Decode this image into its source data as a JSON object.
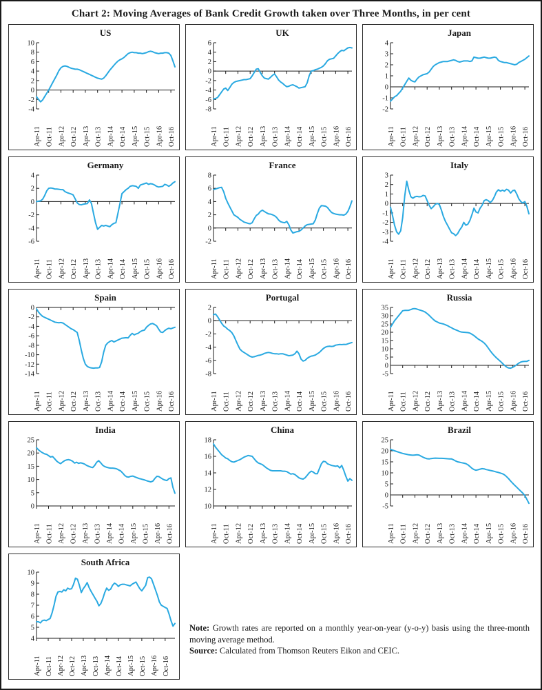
{
  "page": {
    "title": "Chart 2: Moving Averages of Bank Credit Growth taken over Three Months, in per cent"
  },
  "note": {
    "label": "Note:",
    "text": " Growth rates are reported on a monthly year-on-year (y-o-y) basis using the three-month moving average method."
  },
  "source": {
    "label": "Source:",
    "text": " Calculated from Thomson Reuters Eikon and CEIC."
  },
  "colors": {
    "line": "#29A9E1",
    "axis": "#1a1a1a"
  },
  "x_tick_labels": [
    "Apr-11",
    "Oct-11",
    "Apr-12",
    "Oct-12",
    "Apr-13",
    "Oct-13",
    "Apr-14",
    "Oct-14",
    "Apr-15",
    "Oct-15",
    "Apr-16",
    "Oct-16"
  ],
  "chart_data": [
    {
      "type": "line",
      "title": "US",
      "ylim": [
        -4,
        10
      ],
      "ystep": 2,
      "values": [
        -1.4,
        -2.0,
        -2.5,
        -2.1,
        -1.4,
        -0.7,
        0.0,
        0.8,
        1.6,
        2.4,
        3.2,
        4.1,
        4.7,
        5.0,
        5.1,
        5.0,
        4.8,
        4.6,
        4.5,
        4.4,
        4.4,
        4.3,
        4.1,
        3.9,
        3.7,
        3.5,
        3.3,
        3.1,
        2.9,
        2.7,
        2.5,
        2.4,
        2.3,
        2.5,
        3.0,
        3.6,
        4.2,
        4.7,
        5.2,
        5.7,
        6.1,
        6.4,
        6.6,
        6.9,
        7.3,
        7.7,
        7.9,
        8.0,
        7.9,
        7.9,
        7.8,
        7.8,
        7.7,
        7.8,
        7.9,
        8.1,
        8.2,
        8.1,
        7.9,
        7.8,
        7.7,
        7.8,
        7.8,
        7.9,
        7.9,
        7.8,
        7.3,
        6.2,
        4.9
      ]
    },
    {
      "type": "line",
      "title": "UK",
      "ylim": [
        -8,
        6
      ],
      "ystep": 2,
      "values": [
        -5.9,
        -5.8,
        -5.6,
        -5.0,
        -4.4,
        -3.8,
        -3.6,
        -4.1,
        -3.5,
        -2.8,
        -2.4,
        -2.2,
        -2.1,
        -2.0,
        -1.9,
        -1.8,
        -1.8,
        -1.7,
        -1.6,
        -1.0,
        -0.3,
        0.4,
        0.5,
        -0.3,
        -1.0,
        -1.5,
        -1.6,
        -1.7,
        -1.3,
        -0.9,
        -0.6,
        -1.2,
        -1.9,
        -2.3,
        -2.6,
        -3.0,
        -3.3,
        -3.2,
        -3.0,
        -2.9,
        -3.1,
        -3.3,
        -3.6,
        -3.5,
        -3.4,
        -3.3,
        -2.5,
        -1.0,
        0.0,
        0.1,
        0.3,
        0.4,
        0.6,
        0.8,
        1.1,
        1.6,
        2.2,
        2.5,
        2.6,
        2.7,
        3.2,
        3.7,
        4.1,
        4.4,
        4.3,
        4.6,
        4.9,
        5.0,
        4.9
      ]
    },
    {
      "type": "line",
      "title": "Japan",
      "ylim": [
        -2,
        4
      ],
      "ystep": 1,
      "values": [
        -1.3,
        -1.1,
        -0.9,
        -0.8,
        -0.6,
        -0.4,
        -0.1,
        0.2,
        0.5,
        0.8,
        0.6,
        0.5,
        0.45,
        0.7,
        0.9,
        1.0,
        1.1,
        1.15,
        1.2,
        1.35,
        1.6,
        1.85,
        2.0,
        2.1,
        2.2,
        2.25,
        2.3,
        2.3,
        2.3,
        2.35,
        2.4,
        2.45,
        2.4,
        2.3,
        2.25,
        2.3,
        2.35,
        2.35,
        2.35,
        2.3,
        2.35,
        2.7,
        2.65,
        2.6,
        2.6,
        2.65,
        2.7,
        2.65,
        2.6,
        2.6,
        2.65,
        2.7,
        2.65,
        2.4,
        2.3,
        2.25,
        2.2,
        2.2,
        2.15,
        2.1,
        2.05,
        2.0,
        2.05,
        2.2,
        2.3,
        2.4,
        2.5,
        2.65,
        2.8
      ]
    },
    {
      "type": "line",
      "title": "Germany",
      "ylim": [
        -6,
        4
      ],
      "ystep": 2,
      "values": [
        0.0,
        0.05,
        0.1,
        0.35,
        0.9,
        1.6,
        2.0,
        2.05,
        2.0,
        1.9,
        1.9,
        1.85,
        1.8,
        1.8,
        1.5,
        1.35,
        1.25,
        1.15,
        1.0,
        0.4,
        -0.2,
        -0.45,
        -0.5,
        -0.4,
        -0.35,
        -0.3,
        0.25,
        -0.3,
        -1.8,
        -3.2,
        -4.2,
        -3.9,
        -3.6,
        -3.7,
        -3.6,
        -3.7,
        -3.8,
        -3.5,
        -3.3,
        -3.2,
        -1.8,
        -0.3,
        1.2,
        1.5,
        1.8,
        2.0,
        2.3,
        2.4,
        2.35,
        2.3,
        2.0,
        2.5,
        2.6,
        2.7,
        2.8,
        2.6,
        2.7,
        2.65,
        2.5,
        2.3,
        2.2,
        2.25,
        2.3,
        2.6,
        2.5,
        2.3,
        2.5,
        2.8,
        3.0
      ]
    },
    {
      "type": "line",
      "title": "France",
      "ylim": [
        -2,
        8
      ],
      "ystep": 2,
      "values": [
        5.8,
        5.9,
        6.0,
        6.1,
        6.15,
        5.5,
        4.5,
        3.8,
        3.2,
        2.6,
        2.0,
        1.8,
        1.6,
        1.3,
        1.1,
        0.9,
        0.8,
        0.7,
        0.65,
        0.8,
        1.4,
        1.9,
        2.1,
        2.5,
        2.7,
        2.5,
        2.3,
        2.15,
        2.1,
        2.0,
        1.85,
        1.6,
        1.2,
        0.95,
        0.85,
        0.8,
        1.0,
        0.5,
        -0.3,
        -0.75,
        -0.65,
        -0.55,
        -0.5,
        -0.3,
        0.0,
        0.3,
        0.5,
        0.55,
        0.6,
        0.65,
        1.2,
        2.2,
        3.0,
        3.4,
        3.35,
        3.3,
        3.1,
        2.7,
        2.35,
        2.2,
        2.1,
        2.05,
        2.0,
        2.0,
        1.95,
        2.1,
        2.5,
        3.2,
        4.1
      ]
    },
    {
      "type": "line",
      "title": "Italy",
      "ylim": [
        -4,
        3
      ],
      "ystep": 1,
      "values": [
        -0.4,
        -1.3,
        -2.3,
        -3.0,
        -3.25,
        -2.9,
        -1.5,
        0.8,
        2.35,
        1.4,
        0.7,
        0.55,
        0.7,
        0.75,
        0.7,
        0.72,
        0.85,
        0.8,
        0.3,
        -0.2,
        -0.55,
        -0.35,
        -0.1,
        0.0,
        -0.1,
        -0.7,
        -1.4,
        -1.9,
        -2.3,
        -2.7,
        -3.1,
        -3.2,
        -3.4,
        -3.2,
        -2.8,
        -2.5,
        -2.0,
        -2.3,
        -2.2,
        -1.8,
        -1.2,
        -0.5,
        -0.9,
        -1.0,
        -0.5,
        -0.2,
        0.3,
        0.4,
        0.3,
        0.1,
        0.3,
        0.7,
        1.2,
        1.45,
        1.3,
        1.4,
        1.3,
        1.5,
        1.4,
        1.1,
        1.35,
        1.4,
        1.0,
        0.5,
        0.2,
        0.05,
        0.2,
        -0.3,
        -1.1
      ]
    },
    {
      "type": "line",
      "title": "Spain",
      "ylim": [
        -14,
        0
      ],
      "ystep": 2,
      "values": [
        -0.3,
        -1.0,
        -1.5,
        -1.9,
        -2.1,
        -2.3,
        -2.5,
        -2.7,
        -2.9,
        -3.1,
        -3.2,
        -3.25,
        -3.2,
        -3.3,
        -3.6,
        -3.9,
        -4.2,
        -4.5,
        -4.7,
        -5.0,
        -5.3,
        -7.0,
        -9.0,
        -10.8,
        -12.0,
        -12.5,
        -12.7,
        -12.8,
        -12.85,
        -12.8,
        -12.8,
        -12.7,
        -11.5,
        -9.5,
        -8.0,
        -7.5,
        -7.2,
        -7.0,
        -7.3,
        -7.1,
        -6.9,
        -6.7,
        -6.5,
        -6.45,
        -6.4,
        -6.45,
        -5.9,
        -5.5,
        -5.8,
        -5.6,
        -5.45,
        -5.1,
        -4.9,
        -4.8,
        -4.2,
        -3.8,
        -3.5,
        -3.4,
        -3.6,
        -3.9,
        -4.6,
        -5.2,
        -5.3,
        -4.9,
        -4.6,
        -4.4,
        -4.5,
        -4.35,
        -4.2
      ]
    },
    {
      "type": "line",
      "title": "Portugal",
      "ylim": [
        -8,
        2
      ],
      "ystep": 2,
      "values": [
        0.9,
        1.0,
        0.6,
        0.1,
        -0.4,
        -0.8,
        -1.0,
        -1.3,
        -1.5,
        -1.8,
        -2.3,
        -3.0,
        -3.7,
        -4.3,
        -4.6,
        -4.8,
        -5.0,
        -5.2,
        -5.4,
        -5.5,
        -5.45,
        -5.35,
        -5.25,
        -5.2,
        -5.1,
        -4.95,
        -4.85,
        -4.8,
        -4.85,
        -4.95,
        -5.0,
        -5.0,
        -5.05,
        -5.0,
        -5.0,
        -5.1,
        -5.2,
        -5.3,
        -5.25,
        -5.2,
        -5.0,
        -4.6,
        -5.0,
        -5.8,
        -6.1,
        -6.0,
        -5.7,
        -5.5,
        -5.35,
        -5.3,
        -5.2,
        -5.0,
        -4.8,
        -4.5,
        -4.2,
        -4.0,
        -3.9,
        -3.85,
        -3.9,
        -3.85,
        -3.7,
        -3.65,
        -3.6,
        -3.62,
        -3.58,
        -3.6,
        -3.5,
        -3.4,
        -3.3
      ]
    },
    {
      "type": "line",
      "title": "Russia",
      "ylim": [
        -5,
        35
      ],
      "ystep": 5,
      "values": [
        23,
        25,
        27,
        28.5,
        30,
        31.5,
        33,
        33.2,
        33.2,
        33.3,
        33.7,
        34.2,
        34.3,
        34.0,
        33.6,
        33.2,
        32.8,
        32.2,
        31.3,
        30.2,
        29.0,
        27.8,
        26.8,
        26.2,
        25.6,
        25.3,
        25.0,
        24.5,
        24.0,
        23.3,
        22.7,
        22.0,
        21.5,
        21.0,
        20.4,
        20.1,
        20.0,
        19.9,
        19.8,
        19.5,
        18.8,
        18.0,
        17.0,
        16.0,
        15.2,
        14.5,
        13.5,
        12.2,
        10.5,
        8.8,
        7.2,
        5.8,
        4.6,
        3.5,
        2.4,
        1.2,
        0.0,
        -1.0,
        -1.6,
        -1.7,
        -1.2,
        -0.5,
        0.4,
        1.3,
        2.0,
        2.3,
        2.4,
        2.4,
        3.0
      ]
    },
    {
      "type": "line",
      "title": "India",
      "ylim": [
        0,
        25
      ],
      "ystep": 5,
      "values": [
        22.0,
        21.2,
        20.6,
        20.1,
        19.7,
        19.5,
        19.0,
        18.5,
        18.7,
        17.9,
        17.0,
        16.4,
        16.0,
        16.6,
        17.1,
        17.4,
        17.5,
        17.3,
        16.9,
        16.2,
        16.5,
        16.1,
        16.3,
        16.1,
        15.8,
        15.3,
        15.0,
        14.7,
        14.5,
        15.3,
        16.5,
        17.1,
        16.3,
        15.4,
        14.9,
        14.6,
        14.4,
        14.3,
        14.3,
        14.2,
        14.0,
        13.6,
        13.2,
        12.4,
        11.5,
        11.0,
        10.9,
        11.2,
        11.3,
        11.0,
        10.7,
        10.4,
        10.2,
        10.0,
        9.8,
        9.5,
        9.3,
        9.1,
        9.4,
        10.4,
        11.2,
        11.1,
        10.6,
        10.1,
        9.8,
        9.6,
        10.3,
        10.6,
        7.0,
        4.8
      ]
    },
    {
      "type": "line",
      "title": "China",
      "ylim": [
        10,
        18
      ],
      "ystep": 2,
      "values": [
        17.5,
        17.1,
        16.8,
        16.5,
        16.2,
        16.0,
        15.8,
        15.7,
        15.5,
        15.35,
        15.3,
        15.4,
        15.5,
        15.6,
        15.75,
        15.9,
        16.0,
        16.1,
        16.05,
        16.0,
        15.7,
        15.4,
        15.2,
        15.1,
        15.0,
        14.8,
        14.6,
        14.45,
        14.3,
        14.25,
        14.25,
        14.25,
        14.25,
        14.25,
        14.2,
        14.2,
        14.15,
        14.0,
        13.85,
        13.9,
        13.8,
        13.6,
        13.4,
        13.3,
        13.25,
        13.4,
        13.7,
        14.0,
        14.2,
        14.1,
        13.9,
        13.9,
        14.5,
        15.1,
        15.4,
        15.35,
        15.1,
        15.0,
        14.9,
        14.85,
        14.8,
        14.85,
        14.6,
        14.9,
        14.3,
        13.6,
        13.0,
        13.3,
        13.1
      ]
    },
    {
      "type": "line",
      "title": "Brazil",
      "ylim": [
        -5,
        25
      ],
      "ystep": 5,
      "values": [
        20.7,
        20.3,
        20.0,
        19.7,
        19.4,
        19.1,
        18.8,
        18.6,
        18.4,
        18.2,
        18.1,
        18.0,
        18.1,
        18.2,
        18.1,
        17.6,
        17.1,
        16.7,
        16.4,
        16.3,
        16.5,
        16.6,
        16.7,
        16.65,
        16.6,
        16.6,
        16.55,
        16.5,
        16.4,
        16.35,
        16.3,
        15.9,
        15.4,
        15.0,
        14.8,
        14.6,
        14.4,
        14.2,
        13.7,
        12.9,
        12.1,
        11.5,
        11.2,
        11.4,
        11.7,
        11.9,
        11.8,
        11.5,
        11.3,
        11.1,
        10.9,
        10.7,
        10.4,
        10.2,
        9.9,
        9.6,
        9.1,
        8.3,
        7.4,
        6.3,
        5.3,
        4.4,
        3.5,
        2.6,
        1.7,
        0.8,
        -0.3,
        -2.0,
        -3.8
      ]
    },
    {
      "type": "line",
      "title": "South Africa",
      "ylim": [
        4,
        10
      ],
      "ystep": 1,
      "values": [
        5.5,
        5.5,
        5.4,
        5.6,
        5.65,
        5.6,
        5.7,
        5.8,
        6.3,
        7.0,
        7.8,
        8.2,
        8.25,
        8.2,
        8.4,
        8.3,
        8.55,
        8.45,
        8.5,
        8.9,
        9.45,
        9.35,
        8.8,
        8.15,
        8.5,
        8.75,
        9.05,
        8.6,
        8.25,
        7.95,
        7.65,
        7.35,
        6.95,
        7.15,
        7.6,
        8.15,
        8.55,
        8.35,
        8.45,
        8.8,
        9.0,
        8.9,
        8.7,
        8.85,
        8.9,
        8.9,
        8.85,
        8.8,
        8.75,
        8.9,
        9.0,
        9.1,
        8.8,
        8.5,
        8.3,
        8.55,
        8.8,
        9.5,
        9.55,
        9.4,
        8.9,
        8.4,
        7.9,
        7.3,
        7.0,
        6.9,
        6.8,
        6.7,
        6.2,
        5.6,
        5.1,
        5.35
      ]
    }
  ]
}
